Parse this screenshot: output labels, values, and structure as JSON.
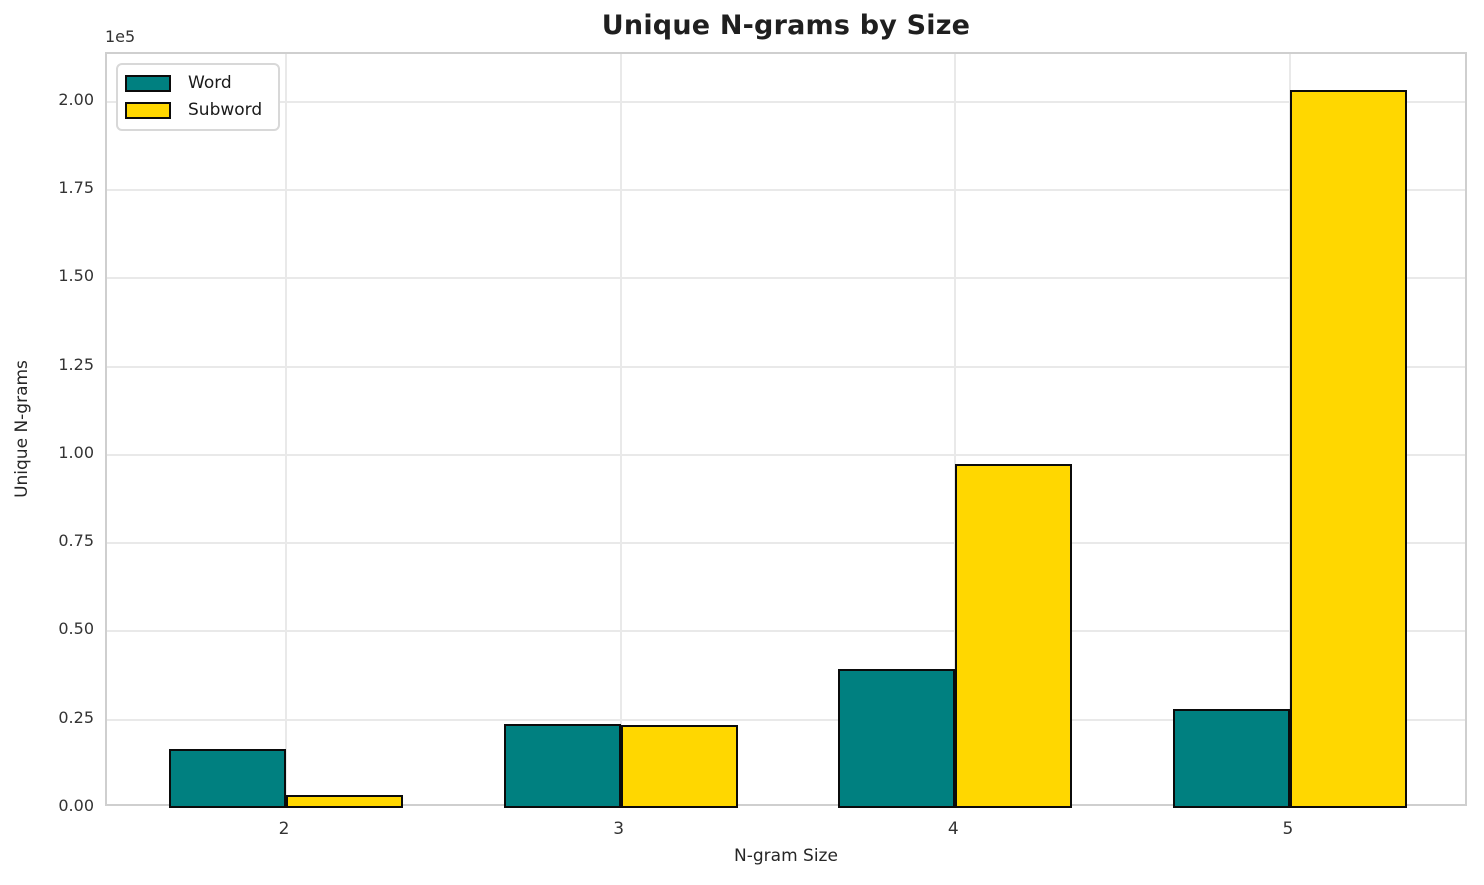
{
  "chart_data": {
    "type": "bar",
    "title": "Unique N-grams by Size",
    "xlabel": "N-gram Size",
    "ylabel": "Unique N-grams",
    "offset_text": "1e5",
    "categories": [
      2,
      3,
      4,
      5
    ],
    "xtick_labels": [
      "2",
      "3",
      "4",
      "5"
    ],
    "series": [
      {
        "name": "Word",
        "color": "#008080",
        "values": [
          16700,
          23900,
          39300,
          27900
        ]
      },
      {
        "name": "Subword",
        "color": "#FFD700",
        "values": [
          3800,
          23400,
          97400,
          203200
        ]
      }
    ],
    "bar_width": 0.35,
    "bar_edge_color": "#000000",
    "xlim": [
      1.465,
      5.535
    ],
    "ylim": [
      0,
      213500
    ],
    "yticks": [
      0,
      25000,
      50000,
      75000,
      100000,
      125000,
      150000,
      175000,
      200000
    ],
    "ytick_labels": [
      "0.00",
      "0.25",
      "0.50",
      "0.75",
      "1.00",
      "1.25",
      "1.50",
      "1.75",
      "2.00"
    ],
    "grid": true,
    "legend_position": "upper-left",
    "legend_entries": [
      "Word",
      "Subword"
    ]
  }
}
